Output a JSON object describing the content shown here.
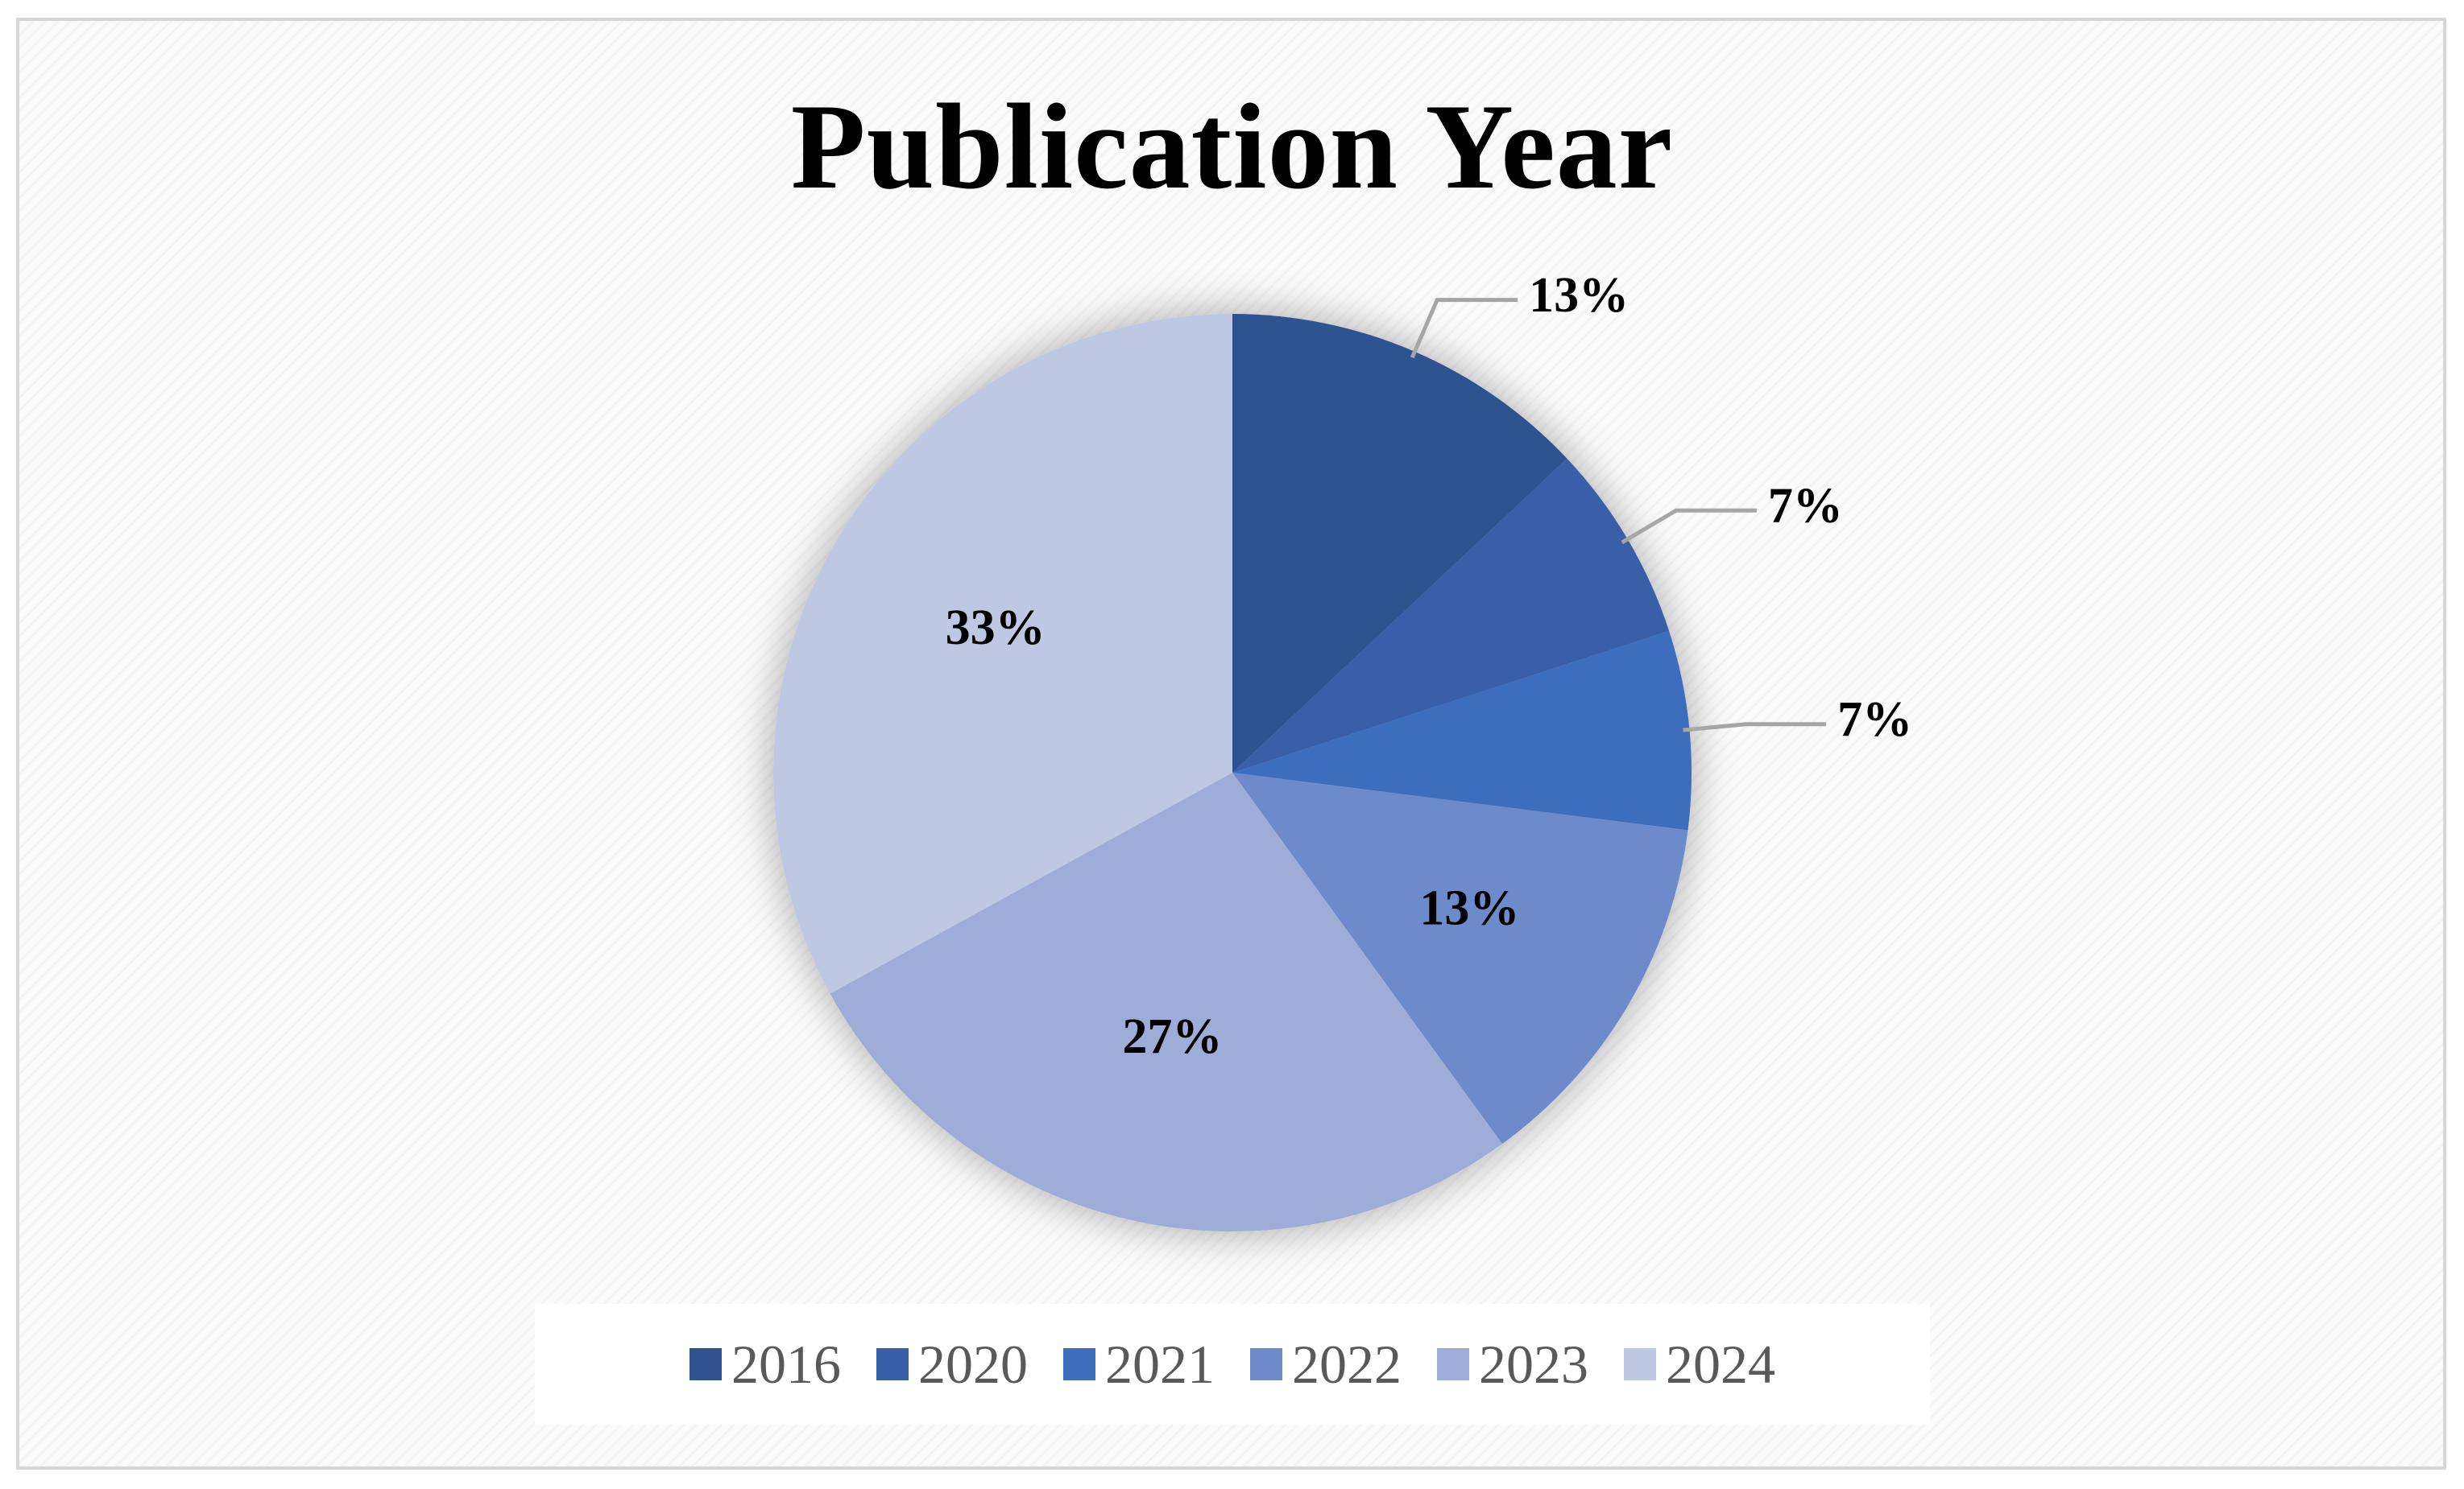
{
  "chart_data": {
    "type": "pie",
    "title": "Publication Year",
    "categories": [
      "2016",
      "2020",
      "2021",
      "2022",
      "2023",
      "2024"
    ],
    "values": [
      13,
      7,
      7,
      13,
      27,
      33
    ],
    "labels": [
      "13%",
      "7%",
      "7%",
      "13%",
      "27%",
      "33%"
    ],
    "colors": [
      "#2f5291",
      "#375fa8",
      "#3e6dbd",
      "#6d8acb",
      "#9dadd8",
      "#bec8e3"
    ],
    "legend_position": "bottom",
    "label_placement": [
      "outside",
      "outside",
      "outside",
      "inside",
      "inside",
      "inside"
    ]
  }
}
